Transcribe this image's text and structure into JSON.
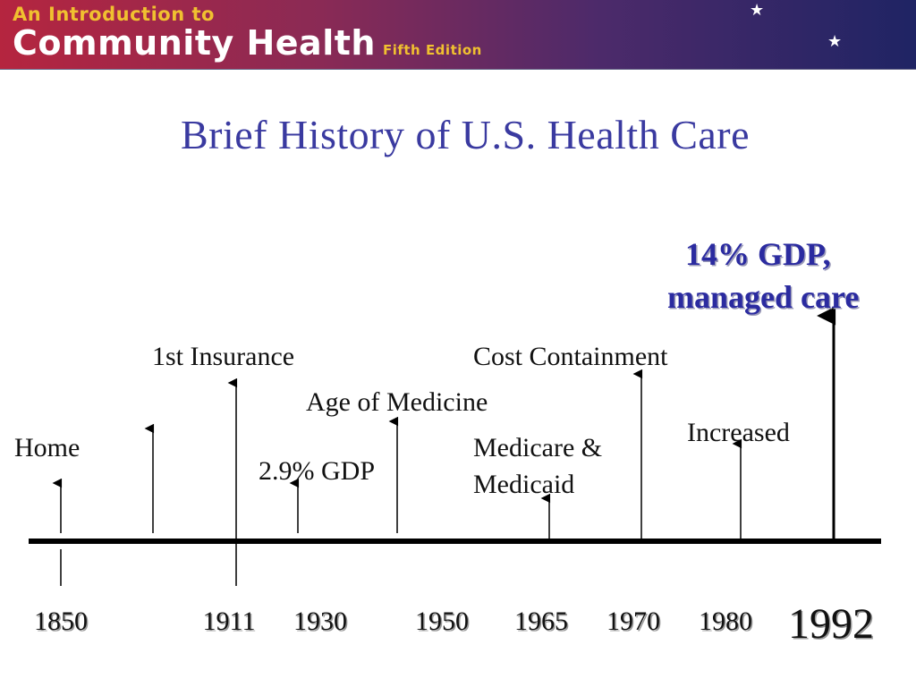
{
  "banner": {
    "line1": "An Introduction to",
    "line2": "Community Health",
    "edition": "Fifth Edition",
    "icons": [
      "moon-icon",
      "star-icon"
    ],
    "colors": {
      "line1": "#f0c030",
      "line2": "#ffffff"
    }
  },
  "slide": {
    "title": "Brief History of U.S. Health Care",
    "title_color": "#3a3aa0"
  },
  "timeline": {
    "events": [
      {
        "id": "home",
        "text": "Home"
      },
      {
        "id": "first-insurance",
        "text": "1st Insurance"
      },
      {
        "id": "gdp-29",
        "text": "2.9% GDP"
      },
      {
        "id": "age-of-medicine",
        "text": "Age of Medicine"
      },
      {
        "id": "medicare-1",
        "text": "Medicare &"
      },
      {
        "id": "medicare-2",
        "text": "Medicaid"
      },
      {
        "id": "cost-containment",
        "text": "Cost Containment"
      },
      {
        "id": "increased",
        "text": "Increased"
      },
      {
        "id": "gdp-14",
        "text": "14% GDP,"
      },
      {
        "id": "managed-care",
        "text": "managed care"
      }
    ],
    "years": [
      "1850",
      "1911",
      "1930",
      "1950",
      "1965",
      "1970",
      "1980",
      "1992"
    ],
    "highlight_color": "#2b2ba0"
  }
}
